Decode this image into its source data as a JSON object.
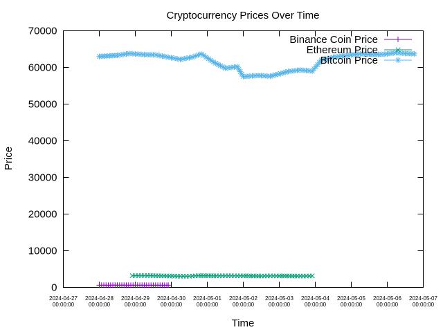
{
  "chart_data": {
    "type": "line",
    "title": "Cryptocurrency Prices Over Time",
    "xlabel": "Time",
    "ylabel": "Price",
    "ylim": [
      0,
      70000
    ],
    "yticks": [
      0,
      10000,
      20000,
      30000,
      40000,
      50000,
      60000,
      70000
    ],
    "xlim": [
      "2024-04-27 00:00:00",
      "2024-05-07 00:00:00"
    ],
    "xticks": [
      {
        "date": "2024-04-27",
        "time": "00:00:00"
      },
      {
        "date": "2024-04-28",
        "time": "00:00:00"
      },
      {
        "date": "2024-04-29",
        "time": "00:00:00"
      },
      {
        "date": "2024-04-30",
        "time": "00:00:00"
      },
      {
        "date": "2024-05-01",
        "time": "00:00:00"
      },
      {
        "date": "2024-05-02",
        "time": "00:00:00"
      },
      {
        "date": "2024-05-03",
        "time": "00:00:00"
      },
      {
        "date": "2024-05-04",
        "time": "00:00:00"
      },
      {
        "date": "2024-05-05",
        "time": "00:00:00"
      },
      {
        "date": "2024-05-06",
        "time": "00:00:00"
      },
      {
        "date": "2024-05-07",
        "time": "00:00:00"
      }
    ],
    "grid": false,
    "legend_position": "top-right",
    "series": [
      {
        "name": "Binance Coin Price",
        "color": "#9400d3",
        "marker": "plus",
        "points": [
          [
            "2024-04-28 00:00",
            600
          ],
          [
            "2024-04-28 03:00",
            600
          ],
          [
            "2024-04-28 06:00",
            601
          ],
          [
            "2024-04-28 09:00",
            602
          ],
          [
            "2024-04-28 12:00",
            603
          ],
          [
            "2024-04-28 15:00",
            602
          ],
          [
            "2024-04-28 18:00",
            601
          ],
          [
            "2024-04-28 21:00",
            600
          ],
          [
            "2024-04-29 00:00",
            599
          ],
          [
            "2024-04-29 03:00",
            598
          ],
          [
            "2024-04-29 06:00",
            597
          ],
          [
            "2024-04-29 09:00",
            596
          ],
          [
            "2024-04-29 12:00",
            595
          ],
          [
            "2024-04-29 15:00",
            594
          ],
          [
            "2024-04-29 18:00",
            594
          ],
          [
            "2024-04-29 21:00",
            593
          ],
          [
            "2024-04-29 22:00",
            593
          ]
        ]
      },
      {
        "name": "Ethereum Price",
        "color": "#009e73",
        "marker": "cross",
        "points": [
          [
            "2024-04-28 22:00",
            3200
          ],
          [
            "2024-04-29 02:00",
            3210
          ],
          [
            "2024-04-29 06:00",
            3220
          ],
          [
            "2024-04-29 10:00",
            3210
          ],
          [
            "2024-04-30 06:00",
            3050
          ],
          [
            "2024-04-30 12:00",
            3060
          ],
          [
            "2024-04-30 18:00",
            3200
          ],
          [
            "2024-05-01 06:00",
            3150
          ],
          [
            "2024-05-01 12:00",
            3170
          ],
          [
            "2024-05-01 18:00",
            3160
          ],
          [
            "2024-05-02 00:00",
            3150
          ],
          [
            "2024-05-02 12:00",
            3100
          ],
          [
            "2024-05-02 18:00",
            3140
          ],
          [
            "2024-05-03 00:00",
            3130
          ],
          [
            "2024-05-03 12:00",
            3100
          ],
          [
            "2024-05-03 18:00",
            3110
          ],
          [
            "2024-05-03 22:00",
            3120
          ]
        ]
      },
      {
        "name": "Bitcoin Price",
        "color": "#56b4e9",
        "marker": "star",
        "points": [
          [
            "2024-04-28 00:00",
            63000
          ],
          [
            "2024-04-28 12:00",
            63300
          ],
          [
            "2024-04-28 20:00",
            63800
          ],
          [
            "2024-04-29 06:00",
            63500
          ],
          [
            "2024-04-29 14:00",
            63400
          ],
          [
            "2024-04-29 22:00",
            62800
          ],
          [
            "2024-04-30 06:00",
            62200
          ],
          [
            "2024-04-30 14:00",
            62800
          ],
          [
            "2024-04-30 20:00",
            63700
          ],
          [
            "2024-05-01 04:00",
            61500
          ],
          [
            "2024-05-01 12:00",
            59800
          ],
          [
            "2024-05-01 20:00",
            60200
          ],
          [
            "2024-05-02 00:00",
            57500
          ],
          [
            "2024-05-02 10:00",
            57800
          ],
          [
            "2024-05-02 18:00",
            57600
          ],
          [
            "2024-05-03 06:00",
            58900
          ],
          [
            "2024-05-03 14:00",
            59300
          ],
          [
            "2024-05-03 22:00",
            59000
          ],
          [
            "2024-05-04 04:00",
            62000
          ],
          [
            "2024-05-04 12:00",
            62800
          ],
          [
            "2024-05-04 20:00",
            63200
          ],
          [
            "2024-05-05 06:00",
            63700
          ],
          [
            "2024-05-05 14:00",
            63500
          ],
          [
            "2024-05-05 22:00",
            63600
          ],
          [
            "2024-05-06 06:00",
            64000
          ],
          [
            "2024-05-06 12:00",
            63800
          ],
          [
            "2024-05-06 18:00",
            63700
          ]
        ]
      }
    ]
  }
}
